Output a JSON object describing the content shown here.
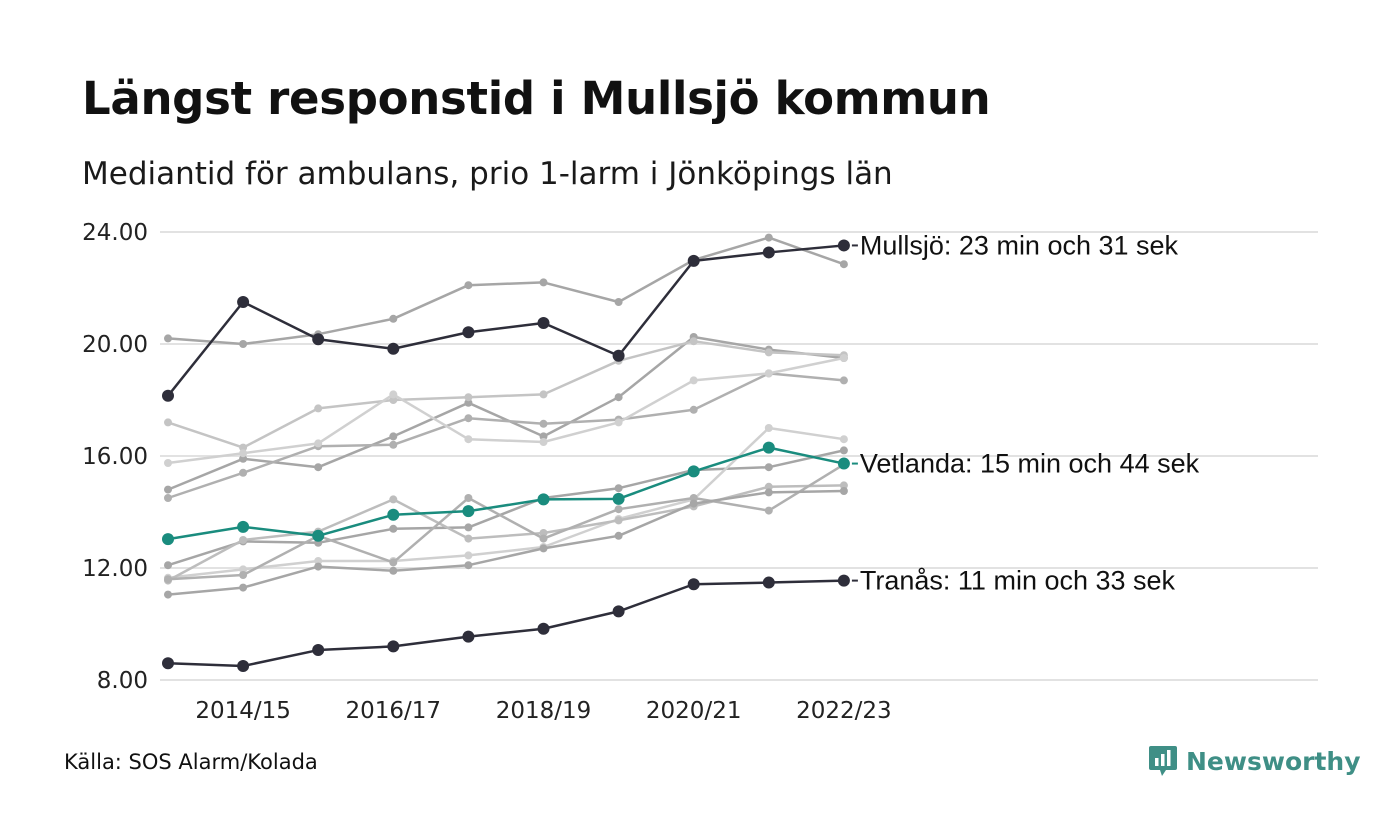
{
  "title": "Längst responstid i Mullsjö kommun",
  "subtitle": "Mediantid för ambulans, prio 1-larm i Jönköpings län",
  "source": "Källa: SOS Alarm/Kolada",
  "brand": "Newsworthy",
  "colors": {
    "highlight_dark": "#2e2e3a",
    "highlight_teal": "#1a8c7e",
    "background_lines": [
      "#a6a6a6",
      "#b0b0b0",
      "#c4c4c4",
      "#bdbdbd",
      "#d0d0d0"
    ],
    "grid": "#e2e2e2",
    "brand": "#3f8f86"
  },
  "chart_data": {
    "type": "line",
    "x": [
      "2013/14",
      "2014/15",
      "2015/16",
      "2016/17",
      "2017/18",
      "2018/19",
      "2019/20",
      "2020/21",
      "2021/22",
      "2022/23"
    ],
    "x_tick_labels": [
      "2014/15",
      "2016/17",
      "2018/19",
      "2020/21",
      "2022/23"
    ],
    "y_ticks": [
      "8.00",
      "12.00",
      "16.00",
      "20.00",
      "24.00"
    ],
    "ylim": [
      8,
      24
    ],
    "grid": true,
    "highlighted": [
      {
        "name": "Mullsjö",
        "label": "Mullsjö: 23 min och 31 sek",
        "color": "#2e2e3a",
        "values": [
          18.15,
          21.5,
          20.17,
          19.83,
          20.42,
          20.75,
          19.58,
          22.97,
          23.27,
          23.52
        ]
      },
      {
        "name": "Vetlanda",
        "label": "Vetlanda: 15 min och 44 sek",
        "color": "#1a8c7e",
        "values": [
          13.03,
          13.47,
          13.15,
          13.9,
          14.03,
          14.45,
          14.47,
          15.45,
          16.3,
          15.73
        ]
      },
      {
        "name": "Tranås",
        "label": "Tranås: 11 min och 33 sek",
        "color": "#2e2e3a",
        "values": [
          8.6,
          8.5,
          9.07,
          9.2,
          9.55,
          9.83,
          10.45,
          11.42,
          11.48,
          11.55
        ]
      }
    ],
    "background_series": [
      {
        "color": "#a6a6a6",
        "values": [
          20.2,
          20.0,
          20.35,
          20.9,
          22.1,
          22.2,
          21.5,
          23.0,
          23.8,
          22.85
        ]
      },
      {
        "color": "#a6a6a6",
        "values": [
          14.8,
          15.9,
          15.6,
          16.7,
          17.9,
          16.7,
          18.1,
          20.25,
          19.8,
          19.5
        ]
      },
      {
        "color": "#c4c4c4",
        "values": [
          17.2,
          16.3,
          17.7,
          18.0,
          18.1,
          18.2,
          19.4,
          20.1,
          19.7,
          19.6
        ]
      },
      {
        "color": "#b0b0b0",
        "values": [
          14.5,
          15.4,
          16.35,
          16.4,
          17.35,
          17.15,
          17.3,
          17.65,
          18.95,
          18.7
        ]
      },
      {
        "color": "#d0d0d0",
        "values": [
          15.75,
          16.1,
          16.45,
          18.2,
          16.6,
          16.5,
          17.2,
          18.7,
          18.95,
          19.5
        ]
      },
      {
        "color": "#a6a6a6",
        "values": [
          12.1,
          12.95,
          12.9,
          13.4,
          13.45,
          14.5,
          14.85,
          15.5,
          15.6,
          16.2
        ]
      },
      {
        "color": "#d0d0d0",
        "values": [
          11.65,
          11.95,
          12.25,
          12.25,
          12.45,
          12.75,
          13.75,
          14.45,
          17.0,
          16.6
        ]
      },
      {
        "color": "#bdbdbd",
        "values": [
          11.55,
          13.0,
          13.3,
          14.45,
          13.05,
          13.25,
          13.7,
          14.2,
          14.9,
          14.95
        ]
      },
      {
        "color": "#b0b0b0",
        "values": [
          11.6,
          11.75,
          13.15,
          12.2,
          14.5,
          13.05,
          14.1,
          14.5,
          14.05,
          15.7
        ]
      },
      {
        "color": "#a6a6a6",
        "values": [
          11.05,
          11.3,
          12.05,
          11.9,
          12.1,
          12.7,
          13.15,
          14.3,
          14.7,
          14.75
        ]
      }
    ]
  }
}
